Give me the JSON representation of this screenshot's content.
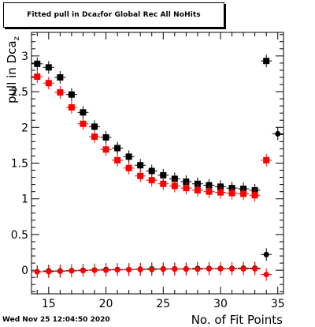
{
  "chart_data": {
    "type": "scatter",
    "title_prefix": "Fitted pull in Dca",
    "title_sub": "z",
    "title_suffix": " for Global Rec All NoHits",
    "xlabel": "No. of Fit Points",
    "ylabel_prefix": "pull in Dca",
    "ylabel_sub": "z",
    "xlim": [
      13.5,
      35.5
    ],
    "ylim": [
      -0.33,
      3.33
    ],
    "x_ticks": [
      15,
      20,
      25,
      30,
      35
    ],
    "y_ticks": [
      0,
      0.5,
      1,
      1.5,
      2,
      2.5,
      3
    ],
    "y_tick_labels": [
      "0",
      "0.5",
      "1",
      "1.5",
      "2",
      "2.5",
      "3"
    ],
    "series": [
      {
        "marker": "square",
        "color": "#000000",
        "points": [
          [
            14,
            2.89
          ],
          [
            15,
            2.84
          ],
          [
            16,
            2.7
          ],
          [
            17,
            2.46
          ],
          [
            18,
            2.21
          ],
          [
            19,
            2.01
          ],
          [
            20,
            1.86
          ],
          [
            21,
            1.71
          ],
          [
            22,
            1.59
          ],
          [
            23,
            1.47
          ],
          [
            24,
            1.39
          ],
          [
            25,
            1.33
          ],
          [
            26,
            1.28
          ],
          [
            27,
            1.24
          ],
          [
            28,
            1.21
          ],
          [
            29,
            1.19
          ],
          [
            30,
            1.17
          ],
          [
            31,
            1.15
          ],
          [
            32,
            1.14
          ],
          [
            33,
            1.12
          ],
          [
            34,
            2.93
          ]
        ]
      },
      {
        "marker": "square",
        "color": "#ff0000",
        "points": [
          [
            14,
            2.71
          ],
          [
            15,
            2.62
          ],
          [
            16,
            2.49
          ],
          [
            17,
            2.28
          ],
          [
            18,
            2.05
          ],
          [
            19,
            1.87
          ],
          [
            20,
            1.69
          ],
          [
            21,
            1.54
          ],
          [
            22,
            1.43
          ],
          [
            23,
            1.32
          ],
          [
            24,
            1.26
          ],
          [
            25,
            1.21
          ],
          [
            26,
            1.18
          ],
          [
            27,
            1.15
          ],
          [
            28,
            1.12
          ],
          [
            29,
            1.1
          ],
          [
            30,
            1.09
          ],
          [
            31,
            1.08
          ],
          [
            32,
            1.07
          ],
          [
            33,
            1.05
          ],
          [
            34,
            1.54
          ]
        ]
      },
      {
        "marker": "circle",
        "color": "#000000",
        "points": [
          [
            14,
            -0.02
          ],
          [
            15,
            -0.01
          ],
          [
            16,
            -0.01
          ],
          [
            17,
            -0.005
          ],
          [
            18,
            0.0
          ],
          [
            19,
            0.005
          ],
          [
            20,
            0.01
          ],
          [
            21,
            0.01
          ],
          [
            22,
            0.01
          ],
          [
            23,
            0.015
          ],
          [
            24,
            0.02
          ],
          [
            25,
            0.02
          ],
          [
            26,
            0.02
          ],
          [
            27,
            0.02
          ],
          [
            28,
            0.025
          ],
          [
            29,
            0.025
          ],
          [
            30,
            0.025
          ],
          [
            31,
            0.025
          ],
          [
            32,
            0.03
          ],
          [
            33,
            0.03
          ],
          [
            34,
            0.22
          ],
          [
            35,
            1.91
          ]
        ]
      },
      {
        "marker": "circle",
        "color": "#ff0000",
        "points": [
          [
            14,
            -0.02
          ],
          [
            15,
            -0.02
          ],
          [
            16,
            -0.015
          ],
          [
            17,
            -0.01
          ],
          [
            18,
            -0.005
          ],
          [
            19,
            0.0
          ],
          [
            20,
            0.0
          ],
          [
            21,
            0.005
          ],
          [
            22,
            0.01
          ],
          [
            23,
            0.01
          ],
          [
            24,
            0.01
          ],
          [
            25,
            0.015
          ],
          [
            26,
            0.015
          ],
          [
            27,
            0.015
          ],
          [
            28,
            0.015
          ],
          [
            29,
            0.02
          ],
          [
            30,
            0.02
          ],
          [
            31,
            0.02
          ],
          [
            32,
            0.02
          ],
          [
            33,
            0.02
          ],
          [
            34,
            -0.06
          ]
        ]
      }
    ]
  },
  "footer": {
    "timestamp": "Wed Nov 25 12:04:50 2020"
  }
}
